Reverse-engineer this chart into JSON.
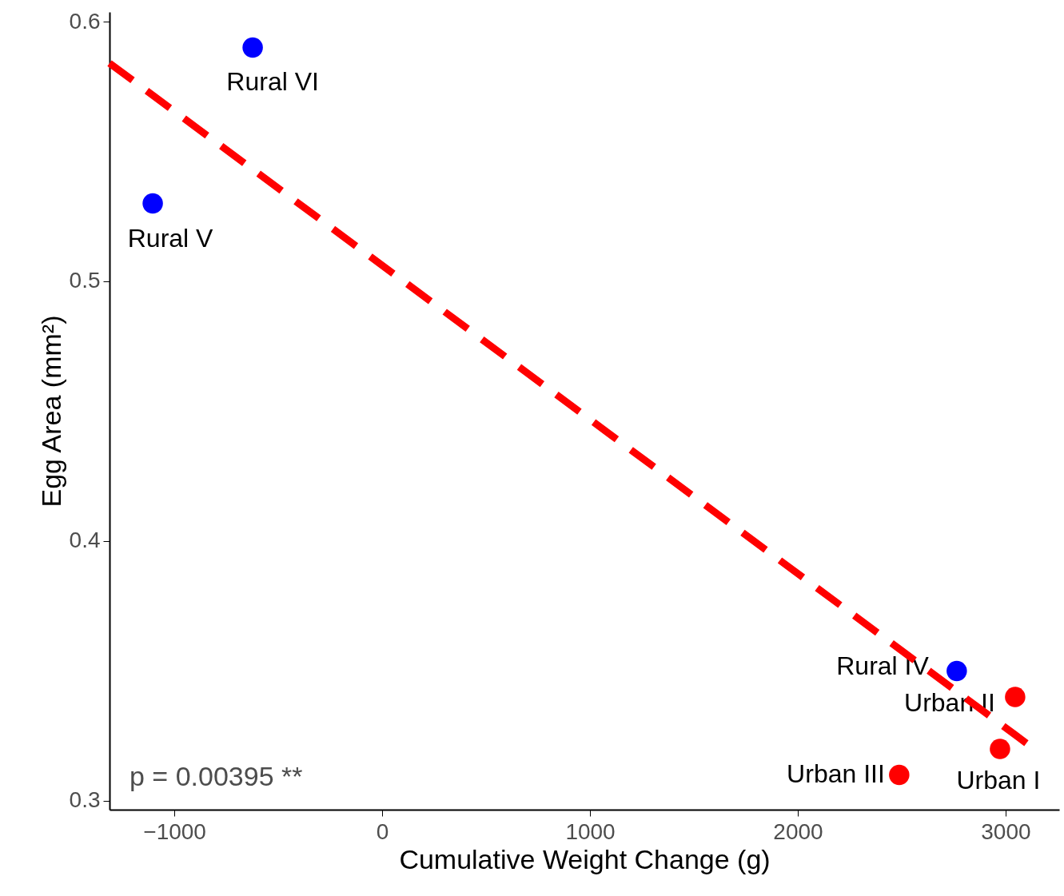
{
  "chart_data": {
    "type": "scatter",
    "xlabel": "Cumulative Weight Change (g)",
    "ylabel": "Egg Area (mm²)",
    "xlim": [
      -1312,
      3258
    ],
    "ylim": [
      0.2966,
      0.6037
    ],
    "xticks": [
      {
        "value": -1000,
        "label": "−1000"
      },
      0,
      1000,
      2000,
      3000
    ],
    "yticks": [
      0.3,
      0.4,
      0.5,
      0.6
    ],
    "grid": false,
    "marker": "circle",
    "series": [
      {
        "color": "#0000ff",
        "x": [
          -623,
          -1104,
          2765
        ],
        "values": [
          0.59,
          0.53,
          0.35
        ],
        "value_labels": [
          "Rural VI",
          "Rural V",
          "Rural IV"
        ]
      },
      {
        "color": "#ff0000",
        "x": [
          3046,
          2973,
          2488
        ],
        "values": [
          0.34,
          0.32,
          0.31
        ],
        "value_labels": [
          "Urban II",
          "Urban I",
          "Urban III"
        ]
      },
      {
        "type": "line",
        "marker": "none",
        "line_style": "dashed",
        "color": "#ff0000",
        "x": [
          -1312,
          3112
        ],
        "values": [
          0.584,
          0.3215
        ]
      }
    ],
    "annotations": [
      "p = 0.00395 **"
    ]
  }
}
